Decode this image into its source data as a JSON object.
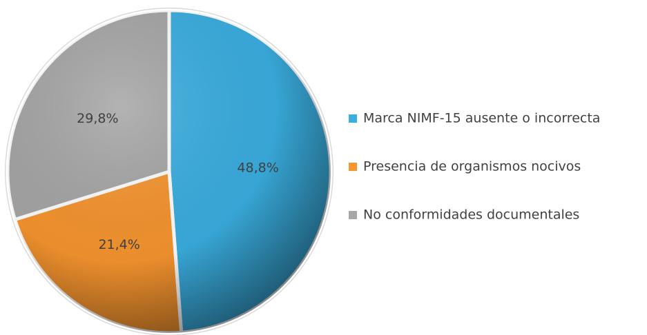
{
  "chart_data": {
    "type": "pie",
    "categories": [
      "Marca NIMF-15 ausente o incorrecta",
      "Presencia de organismos nocivos",
      "No conformidades documentales"
    ],
    "values": [
      48.8,
      21.4,
      29.8
    ],
    "value_labels": [
      "48,8%",
      "21,4%",
      "29,8%"
    ],
    "colors": [
      "#3aaee0",
      "#f7952f",
      "#a6a6a6"
    ],
    "legend": "right"
  }
}
